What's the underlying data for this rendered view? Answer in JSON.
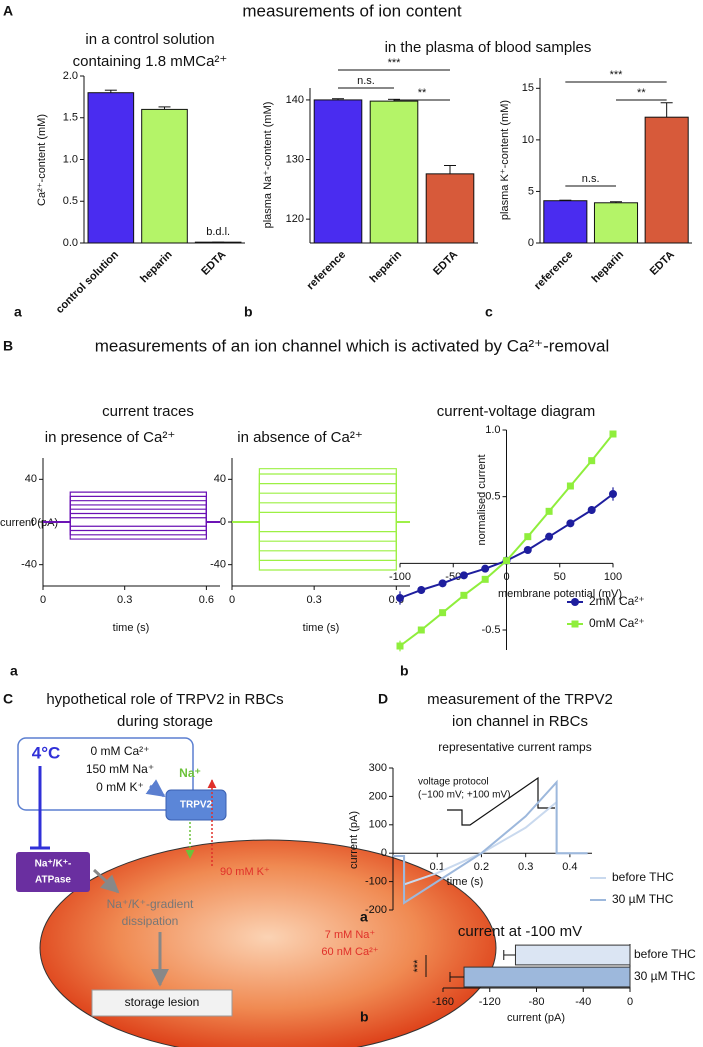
{
  "headings": {
    "A": {
      "letter": "A",
      "title": "measurements of ion content",
      "plasma": "in the plasma of blood samples"
    },
    "B": {
      "letter": "B",
      "title": "measurements of an ion channel which is activated by Ca²⁺-removal",
      "traces": "current traces"
    },
    "C": {
      "letter": "C"
    },
    "D": {
      "letter": "D",
      "title": [
        "measurement of the TRPV2",
        "ion channel in RBCs"
      ]
    }
  },
  "chart_data": [
    {
      "type": "bar",
      "panel": "a",
      "title": [
        "in a control solution",
        "containing 1.8 mMCa²⁺"
      ],
      "ylabel": "Ca²⁺-content (mM)",
      "categories": [
        "control solution",
        "heparin",
        "EDTA"
      ],
      "values": [
        1.8,
        1.6,
        0.01
      ],
      "errors": [
        0.03,
        0.03,
        0
      ],
      "colors": [
        "#4a2cf0",
        "#b4f468",
        "#d75a3a"
      ],
      "annotation": "b.d.l.",
      "ylim": [
        0,
        2
      ],
      "yticks": [
        {
          "value": 0,
          "label": "0.0"
        },
        0.5,
        {
          "value": 1,
          "label": "1.0"
        },
        1.5,
        {
          "value": 2,
          "label": "2.0"
        }
      ]
    },
    {
      "type": "bar",
      "panel": "b",
      "ylabel": "plasma Na⁺-content (mM)",
      "categories": [
        "reference",
        "heparin",
        "EDTA"
      ],
      "values": [
        140,
        139.8,
        127.6
      ],
      "errors": [
        0.2,
        0.3,
        1.4
      ],
      "colors": [
        "#4a2cf0",
        "#b4f468",
        "#d75a3a"
      ],
      "ylim": [
        116,
        142
      ],
      "yticks": [
        120,
        130,
        140
      ],
      "significance": [
        {
          "from": "reference",
          "to": "EDTA",
          "label": "***"
        },
        {
          "from": "reference",
          "to": "heparin",
          "label": "n.s."
        },
        {
          "from": "heparin",
          "to": "EDTA",
          "label": "**"
        }
      ]
    },
    {
      "type": "bar",
      "panel": "c",
      "ylabel": "plasma K⁺-content (mM)",
      "categories": [
        "reference",
        "heparin",
        "EDTA"
      ],
      "values": [
        4.1,
        3.9,
        12.2
      ],
      "errors": [
        0.05,
        0.1,
        1.4
      ],
      "colors": [
        "#4a2cf0",
        "#b4f468",
        "#d75a3a"
      ],
      "ylim": [
        0,
        16
      ],
      "yticks": [
        0,
        5,
        10,
        15
      ],
      "significance": [
        {
          "from": "reference",
          "to": "EDTA",
          "label": "***"
        },
        {
          "from": "heparin",
          "to": "EDTA",
          "label": "**"
        },
        {
          "from": "reference",
          "to": "heparin",
          "label": "n.s."
        }
      ]
    },
    {
      "type": "step",
      "panel": "a",
      "title": "in presence of Ca²⁺",
      "ylabel": "current (pA)",
      "xlabel": "time (s)",
      "color": "#6a10b4",
      "x": [
        0,
        0.1,
        0.6,
        0.65
      ],
      "xlim": [
        0,
        0.65
      ],
      "xticks": [
        0,
        0.3,
        0.6
      ],
      "ylim": [
        -60,
        60
      ],
      "yticks": [
        -40,
        0,
        40
      ],
      "series": [
        {
          "values": [
            0,
            -16,
            0,
            0
          ]
        },
        {
          "values": [
            0,
            -12,
            0,
            0
          ]
        },
        {
          "values": [
            0,
            -8,
            0,
            0
          ]
        },
        {
          "values": [
            0,
            -4,
            0,
            0
          ]
        },
        {
          "values": [
            0,
            4,
            0,
            0
          ]
        },
        {
          "values": [
            0,
            8,
            0,
            0
          ]
        },
        {
          "values": [
            0,
            12,
            0,
            0
          ]
        },
        {
          "values": [
            0,
            16,
            0,
            0
          ]
        },
        {
          "values": [
            0,
            20,
            0,
            0
          ]
        },
        {
          "values": [
            0,
            24,
            0,
            0
          ]
        },
        {
          "values": [
            0,
            28,
            0,
            0
          ]
        }
      ]
    },
    {
      "type": "step",
      "title": "in absence of Ca²⁺",
      "xlabel": "time (s)",
      "color": "#9cf044",
      "x": [
        0,
        0.1,
        0.6,
        0.65
      ],
      "xlim": [
        0,
        0.65
      ],
      "xticks": [
        0,
        0.3,
        0.6
      ],
      "ylim": [
        -60,
        60
      ],
      "yticks": [
        -40,
        0,
        40
      ],
      "series": [
        {
          "values": [
            0,
            -45,
            0,
            0
          ]
        },
        {
          "values": [
            0,
            -36,
            0,
            0
          ]
        },
        {
          "values": [
            0,
            -27,
            0,
            0
          ]
        },
        {
          "values": [
            0,
            -18,
            0,
            0
          ]
        },
        {
          "values": [
            0,
            -9,
            0,
            0
          ]
        },
        {
          "values": [
            0,
            9,
            0,
            0
          ]
        },
        {
          "values": [
            0,
            18,
            0,
            0
          ]
        },
        {
          "values": [
            0,
            27,
            0,
            0
          ]
        },
        {
          "values": [
            0,
            36,
            0,
            0
          ]
        },
        {
          "values": [
            0,
            45,
            0,
            0
          ]
        },
        {
          "values": [
            0,
            50,
            0,
            0
          ]
        }
      ]
    },
    {
      "type": "line",
      "panel": "b",
      "title": "current-voltage diagram",
      "xlabel": "membrane potential (mV)",
      "ylabel": "normalised current",
      "x": [
        -100,
        -80,
        -60,
        -40,
        -20,
        0,
        20,
        40,
        60,
        80,
        100
      ],
      "xlim": [
        -100,
        100
      ],
      "xticks": [
        -100,
        -50,
        0,
        50,
        100
      ],
      "ylim": [
        -0.65,
        1
      ],
      "yticks": [
        -0.5,
        0.5,
        {
          "value": 1,
          "label": "1.0"
        }
      ],
      "legend": "lower right",
      "series": [
        {
          "name": "2mM Ca²⁺",
          "color": "#1e1e9e",
          "marker": "circle",
          "values": [
            -0.26,
            -0.2,
            -0.15,
            -0.09,
            -0.04,
            0.02,
            0.1,
            0.2,
            0.3,
            0.4,
            0.52
          ],
          "errors": [
            0.05,
            0.03,
            0.02,
            0.02,
            0.01,
            0.01,
            0.01,
            0.02,
            0.02,
            0.03,
            0.05
          ]
        },
        {
          "name": "0mM Ca²⁺",
          "color": "#8fee3c",
          "marker": "square",
          "values": [
            -0.62,
            -0.5,
            -0.37,
            -0.24,
            -0.12,
            0.02,
            0.2,
            0.39,
            0.58,
            0.77,
            0.97
          ],
          "errors": [
            0.04,
            0.02,
            0.02,
            0.01,
            0.01,
            0.01,
            0.01,
            0.01,
            0.01,
            0.01,
            0.01
          ]
        }
      ]
    },
    {
      "type": "line",
      "panel": "a",
      "title": "representative current ramps",
      "annotation": [
        "voltage protocol",
        "(−100 mV; +100 mV)"
      ],
      "xlabel": "time (s)",
      "ylabel": "current (pA)",
      "x": [
        0,
        0.025,
        0.025,
        0.1,
        0.2,
        0.3,
        0.37,
        0.37,
        0.44
      ],
      "xlim": [
        0,
        0.45
      ],
      "xticks": [
        0.1,
        0.2,
        0.3,
        0.4
      ],
      "ylim": [
        -200,
        300
      ],
      "yticks": [
        -200,
        -100,
        0,
        100,
        200,
        300
      ],
      "legend": "right",
      "series": [
        {
          "name": "before THC",
          "color": "#c9d9ee",
          "values": [
            -10,
            -10,
            -110,
            -70,
            0,
            90,
            180,
            0,
            0
          ]
        },
        {
          "name": "30 µM THC",
          "color": "#9db8dc",
          "values": [
            -10,
            -10,
            -175,
            -100,
            0,
            130,
            250,
            0,
            0
          ]
        }
      ]
    },
    {
      "type": "hbar",
      "panel": "b",
      "title": "current at -100 mV",
      "xlabel": "current (pA)",
      "categories": [
        "before THC",
        "30 µM THC"
      ],
      "values": [
        -98,
        -142
      ],
      "errors": [
        10,
        12
      ],
      "colors": [
        "#dbe5f3",
        "#9db8dc"
      ],
      "xlim": [
        -160,
        0
      ],
      "xticks": [
        -160,
        -120,
        -80,
        -40,
        0
      ],
      "significance": [
        {
          "from": "before THC",
          "to": "30 µM THC",
          "label": "***"
        }
      ]
    }
  ],
  "diagram": {
    "title": [
      "hypothetical role of TRPV2 in RBCs",
      "during storage"
    ],
    "temperature": "4°C",
    "solution": [
      "0 mM Ca²⁺",
      "150 mM Na⁺",
      "0 mM K⁺"
    ],
    "influx": "Na⁺",
    "channel": "TRPV2",
    "pump": [
      "Na⁺/K⁺-",
      "ATPase"
    ],
    "efflux": "90 mM K⁺",
    "cell": [
      "7 mM Na⁺",
      "60 nM Ca²⁺"
    ],
    "process": [
      "Na⁺/K⁺-gradient",
      "dissipation"
    ],
    "outcome": "storage lesion"
  }
}
